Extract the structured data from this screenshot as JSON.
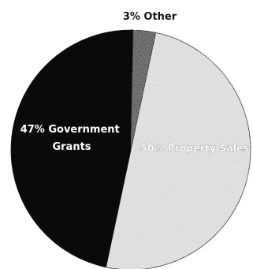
{
  "chart_data": {
    "type": "pie",
    "categories": [
      "Property Sales",
      "Government Grants",
      "Other"
    ],
    "values": [
      50,
      47,
      3
    ],
    "labels": [
      "50% Property Sales",
      "47% Government Grants",
      "3% Other"
    ],
    "colors": [
      "#e6e6e6",
      "#0a0a0a",
      "#555555"
    ]
  }
}
